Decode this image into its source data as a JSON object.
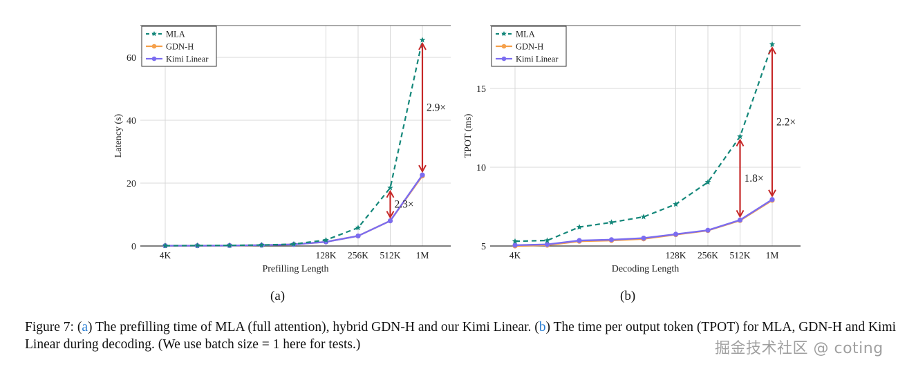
{
  "colors": {
    "mla": "#14877a",
    "gdn": "#f5a04a",
    "kimi": "#7b6cf0",
    "arrow": "#c62828",
    "grid": "#d8d8d8"
  },
  "chart_data": [
    {
      "type": "line",
      "subfig_label": "(a)",
      "title": "",
      "xlabel": "Prefilling Length",
      "ylabel": "Latency (s)",
      "ylim": [
        0,
        68
      ],
      "yticks": [
        0,
        20,
        40,
        60
      ],
      "x_index": [
        0,
        1,
        2,
        3,
        4,
        5,
        6,
        7,
        8
      ],
      "xtick_labels": [
        {
          "i": 0,
          "label": "4K"
        },
        {
          "i": 5,
          "label": "128K"
        },
        {
          "i": 6,
          "label": "256K"
        },
        {
          "i": 7,
          "label": "512K"
        },
        {
          "i": 8,
          "label": "1M"
        }
      ],
      "grid": true,
      "legend_position": "top-left",
      "series": [
        {
          "name": "MLA",
          "style": "dashed-star",
          "values": [
            0.1,
            0.15,
            0.2,
            0.3,
            0.6,
            1.9,
            5.8,
            18.5,
            65.5
          ]
        },
        {
          "name": "GDN-H",
          "style": "solid-dot",
          "values": [
            0.1,
            0.1,
            0.15,
            0.25,
            0.5,
            1.3,
            3.2,
            8.0,
            22.3
          ]
        },
        {
          "name": "Kimi Linear",
          "style": "solid-dot",
          "values": [
            0.1,
            0.1,
            0.15,
            0.25,
            0.5,
            1.3,
            3.2,
            8.0,
            22.6
          ]
        }
      ],
      "annotations": [
        {
          "x_index": 7,
          "from": 8.0,
          "to": 18.5,
          "label": "2.3×"
        },
        {
          "x_index": 8,
          "from": 22.6,
          "to": 65.5,
          "label": "2.9×"
        }
      ]
    },
    {
      "type": "line",
      "subfig_label": "(b)",
      "title": "",
      "xlabel": "Decoding Length",
      "ylabel": "TPOT (ms)",
      "ylim": [
        5,
        18.8
      ],
      "yticks": [
        5,
        10,
        15
      ],
      "x_index": [
        0,
        1,
        2,
        3,
        4,
        5,
        6,
        7,
        8
      ],
      "xtick_labels": [
        {
          "i": 0,
          "label": "4K"
        },
        {
          "i": 5,
          "label": "128K"
        },
        {
          "i": 6,
          "label": "256K"
        },
        {
          "i": 7,
          "label": "512K"
        },
        {
          "i": 8,
          "label": "1M"
        }
      ],
      "grid": true,
      "legend_position": "top-left",
      "series": [
        {
          "name": "MLA",
          "style": "dashed-star",
          "values": [
            5.3,
            5.35,
            6.2,
            6.5,
            6.85,
            7.65,
            9.05,
            11.95,
            17.8
          ]
        },
        {
          "name": "GDN-H",
          "style": "solid-dot",
          "values": [
            5.0,
            5.05,
            5.3,
            5.35,
            5.45,
            5.72,
            5.98,
            6.62,
            7.9
          ]
        },
        {
          "name": "Kimi Linear",
          "style": "solid-dot",
          "values": [
            5.05,
            5.1,
            5.35,
            5.4,
            5.5,
            5.75,
            6.0,
            6.65,
            7.95
          ]
        }
      ],
      "annotations": [
        {
          "x_index": 7,
          "from": 6.65,
          "to": 11.95,
          "label": "1.8×"
        },
        {
          "x_index": 8,
          "from": 7.95,
          "to": 17.8,
          "label": "2.2×"
        }
      ]
    }
  ],
  "caption": {
    "prefix": "Figure 7: (",
    "ref_a": "a",
    "text_a": ") The prefilling time of MLA (full attention), hybrid GDN-H and our Kimi Linear. (",
    "ref_b": "b",
    "text_b": ") The time per output token (TPOT) for MLA, GDN-H and Kimi Linear during decoding. (We use batch size = 1 here for tests.)"
  },
  "watermark": "掘金技术社区 @ coting"
}
